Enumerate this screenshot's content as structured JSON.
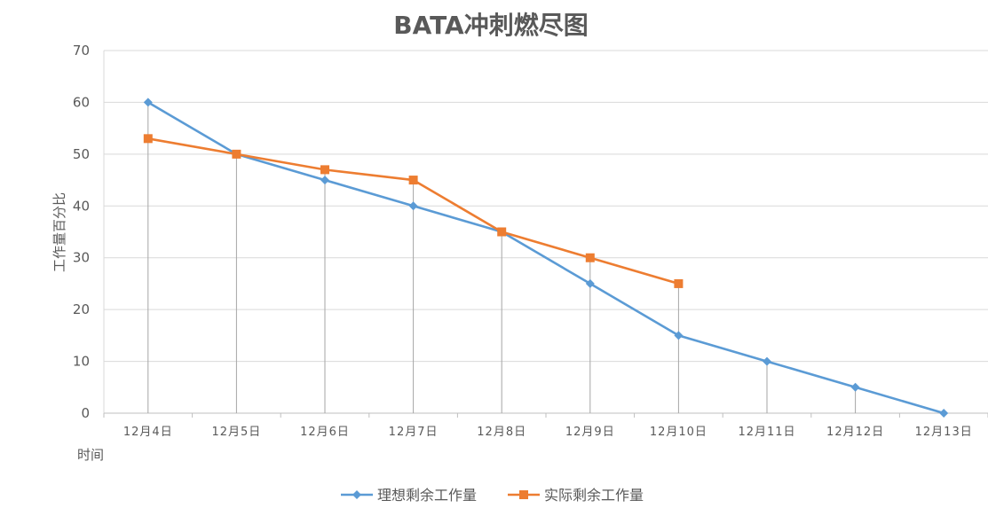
{
  "chart_data": {
    "type": "line",
    "title": "BATA冲刺燃尽图",
    "xlabel": "时间",
    "ylabel": "工作量百分比",
    "categories": [
      "12月4日",
      "12月5日",
      "12月6日",
      "12月7日",
      "12月8日",
      "12月9日",
      "12月10日",
      "12月11日",
      "12月12日",
      "12月13日"
    ],
    "ylim": [
      0,
      70
    ],
    "yticks": [
      0,
      10,
      20,
      30,
      40,
      50,
      60,
      70
    ],
    "grid": true,
    "drop_lines": true,
    "legend_position": "bottom",
    "series": [
      {
        "name": "理想剩余工作量",
        "color": "#5b9bd5",
        "marker": "diamond",
        "values": [
          60,
          50,
          45,
          40,
          35,
          25,
          15,
          10,
          5,
          0
        ]
      },
      {
        "name": "实际剩余工作量",
        "color": "#ed7d31",
        "marker": "square",
        "values": [
          53,
          50,
          47,
          45,
          35,
          30,
          25,
          null,
          null,
          null
        ]
      }
    ]
  }
}
